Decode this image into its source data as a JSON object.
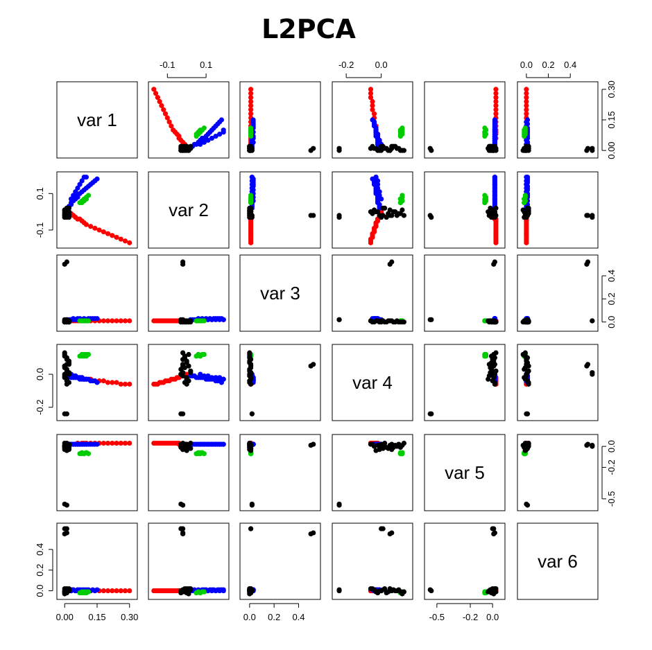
{
  "title": "L2PCA",
  "chart_data": {
    "type": "scatter",
    "title": "L2PCA",
    "variables": [
      "var 1",
      "var 2",
      "var 3",
      "var 4",
      "var 5",
      "var 6"
    ],
    "axes": [
      {
        "variable": "var 1",
        "range": [
          -0.02,
          0.32
        ],
        "ticks": [
          0.0,
          0.15,
          0.3
        ],
        "tick_labels": [
          "0.00",
          "0.15",
          "0.30"
        ]
      },
      {
        "variable": "var 2",
        "range": [
          -0.18,
          0.2
        ],
        "ticks": [
          -0.1,
          0.1
        ],
        "tick_labels": [
          "-0.1",
          "0.1"
        ]
      },
      {
        "variable": "var 3",
        "range": [
          -0.05,
          0.55
        ],
        "ticks": [
          0.0,
          0.2,
          0.4
        ],
        "tick_labels": [
          "0.0",
          "0.2",
          "0.4"
        ]
      },
      {
        "variable": "var 4",
        "range": [
          -0.26,
          0.16
        ],
        "ticks": [
          -0.2,
          0.0
        ],
        "tick_labels": [
          "-0.2",
          "0.0"
        ]
      },
      {
        "variable": "var 5",
        "range": [
          -0.58,
          0.08
        ],
        "ticks": [
          -0.5,
          -0.2,
          0.0
        ],
        "tick_labels": [
          "-0.5",
          "-0.2",
          "0.0"
        ]
      },
      {
        "variable": "var 6",
        "range": [
          -0.05,
          0.62
        ],
        "ticks": [
          0.0,
          0.2,
          0.4
        ],
        "tick_labels": [
          "0.0",
          "0.2",
          "0.4"
        ]
      }
    ],
    "series": [
      {
        "color": "#ff0000",
        "points": [
          [
            0.3,
            -0.17,
            0.01,
            -0.06,
            0.03,
            0.0
          ],
          [
            0.28,
            -0.16,
            0.01,
            -0.06,
            0.03,
            0.0
          ],
          [
            0.26,
            -0.15,
            0.01,
            -0.06,
            0.03,
            0.0
          ],
          [
            0.24,
            -0.14,
            0.01,
            -0.05,
            0.03,
            0.0
          ],
          [
            0.22,
            -0.13,
            0.01,
            -0.05,
            0.03,
            0.0
          ],
          [
            0.2,
            -0.12,
            0.01,
            -0.05,
            0.03,
            0.0
          ],
          [
            0.18,
            -0.11,
            0.01,
            -0.04,
            0.03,
            0.0
          ],
          [
            0.16,
            -0.1,
            0.01,
            -0.04,
            0.03,
            0.0
          ],
          [
            0.14,
            -0.09,
            0.01,
            -0.04,
            0.03,
            0.0
          ],
          [
            0.12,
            -0.08,
            0.01,
            -0.03,
            0.03,
            0.0
          ],
          [
            0.1,
            -0.07,
            0.01,
            -0.03,
            0.03,
            0.0
          ],
          [
            0.09,
            -0.06,
            0.01,
            -0.03,
            0.03,
            0.0
          ],
          [
            0.08,
            -0.05,
            0.01,
            -0.02,
            0.03,
            0.0
          ],
          [
            0.07,
            -0.04,
            0.01,
            -0.02,
            0.02,
            0.0
          ],
          [
            0.06,
            -0.04,
            0.01,
            -0.02,
            0.03,
            0.0
          ],
          [
            0.05,
            -0.03,
            0.01,
            -0.01,
            0.02,
            0.0
          ],
          [
            0.04,
            -0.02,
            0.01,
            -0.01,
            0.02,
            0.01
          ],
          [
            0.03,
            -0.01,
            0.01,
            -0.01,
            0.02,
            0.0
          ],
          [
            0.02,
            -0.01,
            0.01,
            0.0,
            0.02,
            0.0
          ],
          [
            0.01,
            0.0,
            0.01,
            0.0,
            0.02,
            0.0
          ]
        ]
      },
      {
        "color": "#0000ff",
        "points": [
          [
            0.01,
            0.02,
            0.02,
            -0.01,
            0.02,
            0.0
          ],
          [
            0.02,
            0.03,
            0.02,
            -0.01,
            0.02,
            0.0
          ],
          [
            0.03,
            0.04,
            0.02,
            -0.01,
            0.02,
            0.01
          ],
          [
            0.03,
            0.05,
            0.02,
            -0.02,
            0.02,
            0.0
          ],
          [
            0.04,
            0.06,
            0.03,
            -0.02,
            0.02,
            0.01
          ],
          [
            0.05,
            0.07,
            0.02,
            -0.02,
            0.02,
            0.0
          ],
          [
            0.06,
            0.08,
            0.03,
            -0.02,
            0.02,
            0.01
          ],
          [
            0.06,
            0.09,
            0.02,
            -0.02,
            0.02,
            0.0
          ],
          [
            0.07,
            0.1,
            0.03,
            -0.03,
            0.02,
            0.01
          ],
          [
            0.08,
            0.11,
            0.02,
            -0.03,
            0.02,
            0.0
          ],
          [
            0.09,
            0.12,
            0.03,
            -0.03,
            0.02,
            0.01
          ],
          [
            0.1,
            0.13,
            0.02,
            -0.03,
            0.02,
            0.0
          ],
          [
            0.11,
            0.14,
            0.03,
            -0.03,
            0.02,
            0.01
          ],
          [
            0.12,
            0.15,
            0.03,
            -0.04,
            0.02,
            0.0
          ],
          [
            0.13,
            0.16,
            0.03,
            -0.04,
            0.02,
            0.01
          ],
          [
            0.14,
            0.17,
            0.03,
            -0.04,
            0.02,
            0.0
          ],
          [
            0.15,
            0.18,
            0.03,
            -0.05,
            0.02,
            0.01
          ],
          [
            0.03,
            0.07,
            0.02,
            0.0,
            0.02,
            0.0
          ],
          [
            0.04,
            0.09,
            0.02,
            -0.01,
            0.02,
            0.01
          ],
          [
            0.05,
            0.11,
            0.02,
            -0.01,
            0.02,
            0.0
          ],
          [
            0.06,
            0.13,
            0.02,
            -0.02,
            0.02,
            0.01
          ],
          [
            0.07,
            0.15,
            0.02,
            -0.02,
            0.02,
            0.0
          ],
          [
            0.08,
            0.17,
            0.02,
            -0.02,
            0.02,
            0.01
          ],
          [
            0.09,
            0.19,
            0.02,
            -0.03,
            0.02,
            0.0
          ],
          [
            0.1,
            0.19,
            0.02,
            -0.03,
            0.02,
            0.01
          ]
        ]
      },
      {
        "color": "#00cc00",
        "points": [
          [
            0.07,
            0.05,
            0.01,
            0.11,
            -0.07,
            -0.02
          ],
          [
            0.08,
            0.06,
            0.01,
            0.12,
            -0.06,
            -0.01
          ],
          [
            0.09,
            0.07,
            0.01,
            0.11,
            -0.07,
            -0.02
          ],
          [
            0.1,
            0.08,
            0.01,
            0.12,
            -0.06,
            -0.01
          ],
          [
            0.09,
            0.06,
            0.01,
            0.12,
            -0.07,
            -0.01
          ],
          [
            0.1,
            0.07,
            0.01,
            0.11,
            -0.06,
            -0.02
          ],
          [
            0.11,
            0.09,
            0.01,
            0.12,
            -0.07,
            -0.01
          ],
          [
            0.08,
            0.05,
            0.01,
            0.11,
            -0.07,
            -0.02
          ]
        ]
      },
      {
        "color": "#000000",
        "points": [
          [
            0.0,
            -0.02,
            0.0,
            0.13,
            0.03,
            -0.01
          ],
          [
            0.01,
            -0.01,
            0.0,
            0.1,
            0.02,
            0.01
          ],
          [
            0.02,
            0.0,
            0.0,
            0.08,
            0.01,
            0.0
          ],
          [
            0.0,
            0.01,
            0.01,
            0.05,
            0.0,
            0.02
          ],
          [
            0.01,
            -0.03,
            0.0,
            0.03,
            -0.01,
            -0.02
          ],
          [
            0.02,
            0.02,
            0.01,
            0.01,
            -0.02,
            0.01
          ],
          [
            0.0,
            -0.02,
            0.0,
            -0.01,
            -0.03,
            0.0
          ],
          [
            0.01,
            0.0,
            0.01,
            -0.03,
            -0.04,
            -0.01
          ],
          [
            0.02,
            -0.01,
            0.0,
            -0.05,
            0.02,
            0.02
          ],
          [
            0.0,
            0.01,
            0.0,
            0.12,
            0.01,
            -0.03
          ],
          [
            0.01,
            -0.02,
            0.01,
            0.09,
            0.0,
            0.0
          ],
          [
            0.02,
            0.0,
            0.0,
            0.07,
            -0.01,
            0.01
          ],
          [
            0.0,
            -0.01,
            0.01,
            0.04,
            -0.02,
            -0.01
          ],
          [
            0.01,
            0.02,
            0.0,
            0.02,
            0.03,
            0.02
          ],
          [
            0.02,
            -0.03,
            0.0,
            0.0,
            0.02,
            0.0
          ],
          [
            0.0,
            0.0,
            0.01,
            -0.02,
            0.01,
            -0.02
          ],
          [
            0.01,
            0.01,
            0.0,
            -0.04,
            0.0,
            0.01
          ],
          [
            0.02,
            -0.02,
            0.01,
            0.06,
            -0.03,
            0.0
          ],
          [
            0.0,
            -0.01,
            0.0,
            0.11,
            -0.01,
            -0.01
          ],
          [
            0.01,
            0.0,
            0.01,
            -0.06,
            0.02,
            0.02
          ],
          [
            0.0,
            -0.02,
            0.5,
            0.05,
            0.01,
            0.55
          ],
          [
            0.01,
            -0.02,
            0.52,
            0.06,
            0.02,
            0.56
          ],
          [
            0.0,
            -0.03,
            0.02,
            -0.24,
            -0.55,
            0.0
          ],
          [
            0.01,
            -0.02,
            0.02,
            -0.24,
            -0.56,
            0.01
          ],
          [
            0.0,
            -0.03,
            0.01,
            0.0,
            0.0,
            0.6
          ],
          [
            0.01,
            -0.02,
            0.01,
            0.01,
            0.01,
            0.6
          ]
        ]
      }
    ],
    "grid": false,
    "legend": "none"
  }
}
